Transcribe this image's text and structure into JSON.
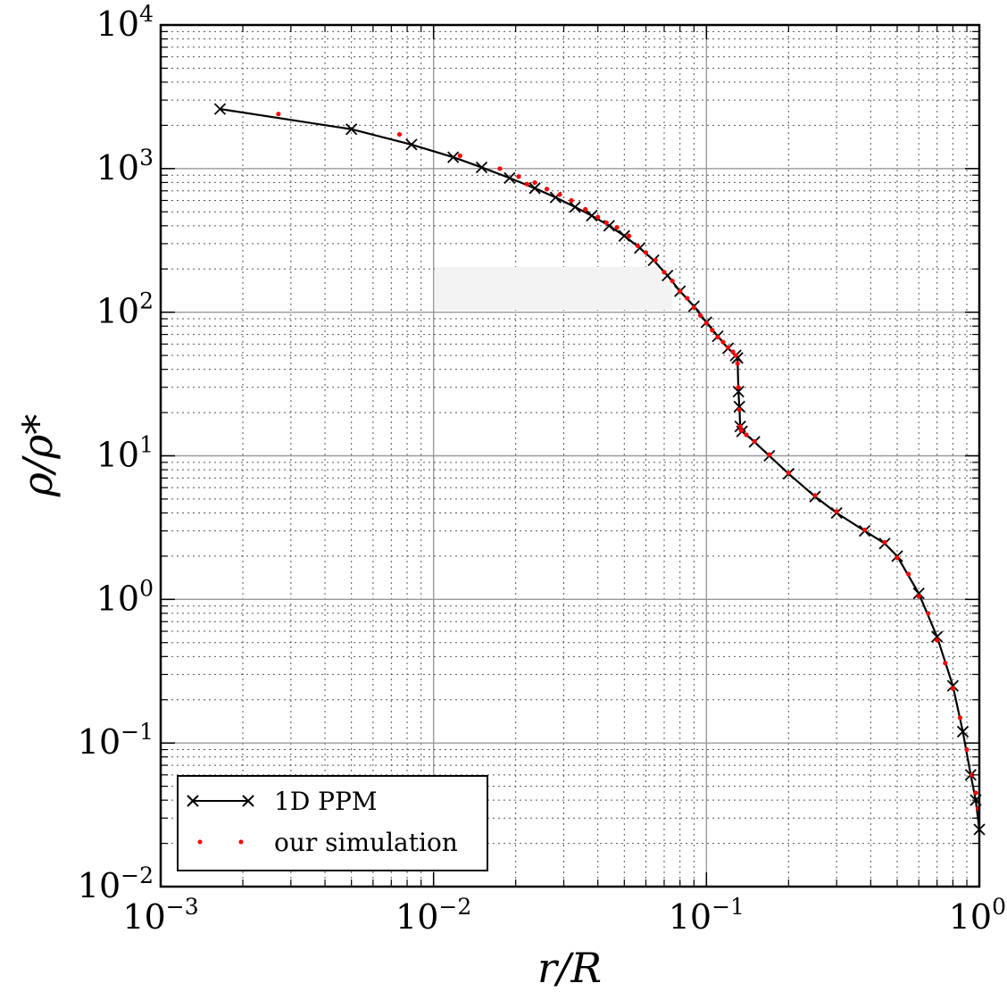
{
  "chart_data": {
    "type": "scatter",
    "title": "",
    "xlabel": "r/R",
    "ylabel": "ρ/ρ*",
    "xscale": "log",
    "yscale": "log",
    "xlim": [
      0.001,
      1
    ],
    "ylim": [
      0.01,
      10000
    ],
    "x_ticks": [
      {
        "base": "10",
        "exp": "−3",
        "value": 0.001
      },
      {
        "base": "10",
        "exp": "−2",
        "value": 0.01
      },
      {
        "base": "10",
        "exp": "−1",
        "value": 0.1
      },
      {
        "base": "10",
        "exp": "0",
        "value": 1
      }
    ],
    "y_ticks": [
      {
        "base": "10",
        "exp": "−2",
        "value": 0.01
      },
      {
        "base": "10",
        "exp": "−1",
        "value": 0.1
      },
      {
        "base": "10",
        "exp": "0",
        "value": 1
      },
      {
        "base": "10",
        "exp": "1",
        "value": 10
      },
      {
        "base": "10",
        "exp": "2",
        "value": 100
      },
      {
        "base": "10",
        "exp": "3",
        "value": 1000
      },
      {
        "base": "10",
        "exp": "4",
        "value": 10000
      }
    ],
    "grid": true,
    "legend_position": "bottom-left",
    "series": [
      {
        "name": "1D PPM",
        "style": "line-x-markers",
        "color": "#000000",
        "points": [
          [
            0.00165,
            2600
          ],
          [
            0.005,
            1880
          ],
          [
            0.0083,
            1470
          ],
          [
            0.0118,
            1200
          ],
          [
            0.015,
            1020
          ],
          [
            0.019,
            860
          ],
          [
            0.0235,
            730
          ],
          [
            0.028,
            630
          ],
          [
            0.033,
            540
          ],
          [
            0.038,
            470
          ],
          [
            0.044,
            400
          ],
          [
            0.05,
            340
          ],
          [
            0.057,
            280
          ],
          [
            0.064,
            230
          ],
          [
            0.072,
            180
          ],
          [
            0.08,
            140
          ],
          [
            0.09,
            110
          ],
          [
            0.1,
            85
          ],
          [
            0.11,
            68
          ],
          [
            0.12,
            56
          ],
          [
            0.128,
            50
          ],
          [
            0.13,
            48
          ],
          [
            0.131,
            28
          ],
          [
            0.132,
            22
          ],
          [
            0.133,
            16
          ],
          [
            0.135,
            14.8
          ],
          [
            0.15,
            12.5
          ],
          [
            0.17,
            10
          ],
          [
            0.2,
            7.5
          ],
          [
            0.25,
            5.2
          ],
          [
            0.3,
            4.0
          ],
          [
            0.38,
            3.0
          ],
          [
            0.45,
            2.45
          ],
          [
            0.5,
            2.0
          ],
          [
            0.6,
            1.1
          ],
          [
            0.7,
            0.55
          ],
          [
            0.8,
            0.25
          ],
          [
            0.87,
            0.12
          ],
          [
            0.93,
            0.06
          ],
          [
            0.97,
            0.04
          ],
          [
            1.0,
            0.025
          ]
        ]
      },
      {
        "name": "our simulation",
        "style": "dots",
        "color": "#ff0000",
        "points": [
          [
            0.0027,
            2400
          ],
          [
            0.0075,
            1730
          ],
          [
            0.0125,
            1230
          ],
          [
            0.0175,
            1000
          ],
          [
            0.0205,
            880
          ],
          [
            0.022,
            780
          ],
          [
            0.0235,
            800
          ],
          [
            0.026,
            720
          ],
          [
            0.029,
            660
          ],
          [
            0.032,
            600
          ],
          [
            0.036,
            520
          ],
          [
            0.04,
            460
          ],
          [
            0.043,
            420
          ],
          [
            0.047,
            390
          ],
          [
            0.052,
            340
          ],
          [
            0.056,
            290
          ],
          [
            0.06,
            260
          ],
          [
            0.065,
            230
          ],
          [
            0.07,
            190
          ],
          [
            0.075,
            165
          ],
          [
            0.08,
            140
          ],
          [
            0.085,
            125
          ],
          [
            0.09,
            108
          ],
          [
            0.095,
            95
          ],
          [
            0.1,
            84
          ],
          [
            0.105,
            75
          ],
          [
            0.11,
            67
          ],
          [
            0.115,
            62
          ],
          [
            0.12,
            57
          ],
          [
            0.125,
            53
          ],
          [
            0.128,
            50
          ],
          [
            0.13,
            44
          ],
          [
            0.131,
            30
          ],
          [
            0.132,
            21
          ],
          [
            0.133,
            16
          ],
          [
            0.134,
            15
          ],
          [
            0.14,
            14
          ],
          [
            0.15,
            12.6
          ],
          [
            0.17,
            10.2
          ],
          [
            0.2,
            7.6
          ],
          [
            0.25,
            5.3
          ],
          [
            0.3,
            4.1
          ],
          [
            0.38,
            3.05
          ],
          [
            0.45,
            2.5
          ],
          [
            0.5,
            1.95
          ],
          [
            0.55,
            1.5
          ],
          [
            0.6,
            1.05
          ],
          [
            0.65,
            0.8
          ],
          [
            0.7,
            0.52
          ],
          [
            0.75,
            0.36
          ],
          [
            0.8,
            0.24
          ],
          [
            0.85,
            0.15
          ],
          [
            0.9,
            0.09
          ],
          [
            0.94,
            0.06
          ],
          [
            0.97,
            0.045
          ],
          [
            0.99,
            0.035
          ]
        ]
      }
    ]
  }
}
